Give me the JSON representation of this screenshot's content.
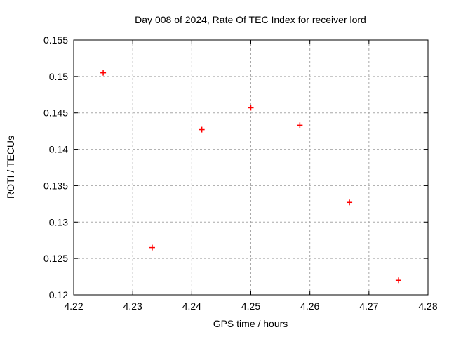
{
  "chart_data": {
    "type": "scatter",
    "title": "Day 008 of 2024, Rate Of TEC Index for receiver lord",
    "xlabel": "GPS time / hours",
    "ylabel": "ROTI / TECUs",
    "xlim": [
      4.22,
      4.28
    ],
    "ylim": [
      0.12,
      0.155
    ],
    "xticks": [
      4.22,
      4.23,
      4.24,
      4.25,
      4.26,
      4.27,
      4.28
    ],
    "yticks": [
      0.12,
      0.125,
      0.13,
      0.135,
      0.14,
      0.145,
      0.15,
      0.155
    ],
    "grid": true,
    "legend_position": "none",
    "marker": "plus",
    "marker_color": "#ff0000",
    "series": [
      {
        "name": "ROTI",
        "points": [
          {
            "x": 4.225,
            "y": 0.1505
          },
          {
            "x": 4.2333,
            "y": 0.1265
          },
          {
            "x": 4.2417,
            "y": 0.1427
          },
          {
            "x": 4.25,
            "y": 0.1457
          },
          {
            "x": 4.2583,
            "y": 0.1433
          },
          {
            "x": 4.2667,
            "y": 0.1327
          },
          {
            "x": 4.275,
            "y": 0.122
          }
        ]
      }
    ]
  },
  "colors": {
    "background": "#ffffff",
    "plot_border": "#000000",
    "grid": "#a8a8a8",
    "text": "#000000",
    "marker": "#ff0000"
  }
}
